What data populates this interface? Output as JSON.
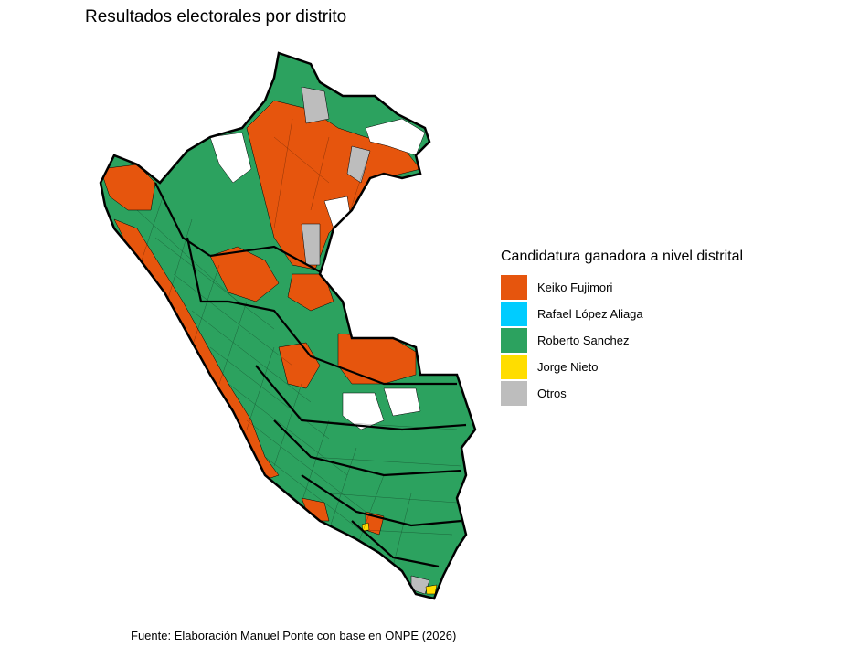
{
  "title": "Resultados electorales por distrito",
  "caption": "Fuente: Elaboración Manuel Ponte con base en ONPE (2026)",
  "legend": {
    "title": "Candidatura ganadora a nivel distrital",
    "items": [
      {
        "label": "Keiko Fujimori",
        "color": "#E6550D"
      },
      {
        "label": "Rafael López Aliaga",
        "color": "#00CCFF"
      },
      {
        "label": "Roberto Sanchez",
        "color": "#2CA25F"
      },
      {
        "label": "Jorge Nieto",
        "color": "#FFDD00"
      },
      {
        "label": "Otros",
        "color": "#BDBDBD"
      }
    ]
  },
  "colors": {
    "fujimori": "#E6550D",
    "lopez_aliaga": "#00CCFF",
    "sanchez": "#2CA25F",
    "nieto": "#FFDD00",
    "otros": "#BDBDBD",
    "no_data": "#FFFFFF",
    "border": "#000000"
  }
}
